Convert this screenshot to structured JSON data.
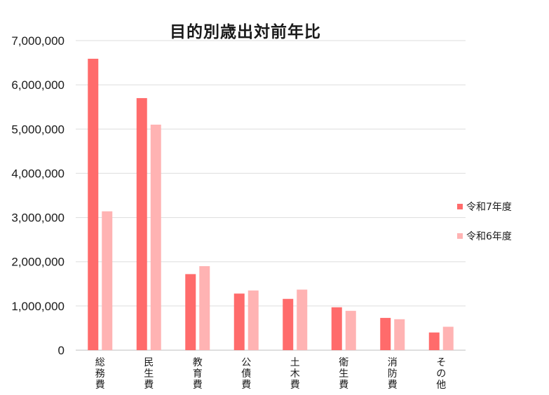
{
  "chart_data": {
    "type": "bar",
    "title": "目的別歳出対前年比",
    "xlabel": "",
    "ylabel": "",
    "ylim": [
      0,
      7000000
    ],
    "yticks": [
      0,
      1000000,
      2000000,
      3000000,
      4000000,
      5000000,
      6000000,
      7000000
    ],
    "ytick_labels": [
      "0",
      "1,000,000",
      "2,000,000",
      "3,000,000",
      "4,000,000",
      "5,000,000",
      "6,000,000",
      "7,000,000"
    ],
    "grid": true,
    "legend_position": "right",
    "categories": [
      "総務費",
      "民生費",
      "教育費",
      "公債費",
      "土木費",
      "衛生費",
      "消防費",
      "その他"
    ],
    "series": [
      {
        "name": "令和7年度",
        "color": "#ff6b6b",
        "values": [
          6590000,
          5700000,
          1720000,
          1280000,
          1160000,
          970000,
          730000,
          400000
        ]
      },
      {
        "name": "令和6年度",
        "color": "#ffb3b3",
        "values": [
          3140000,
          5100000,
          1900000,
          1350000,
          1370000,
          890000,
          700000,
          530000
        ]
      }
    ]
  }
}
